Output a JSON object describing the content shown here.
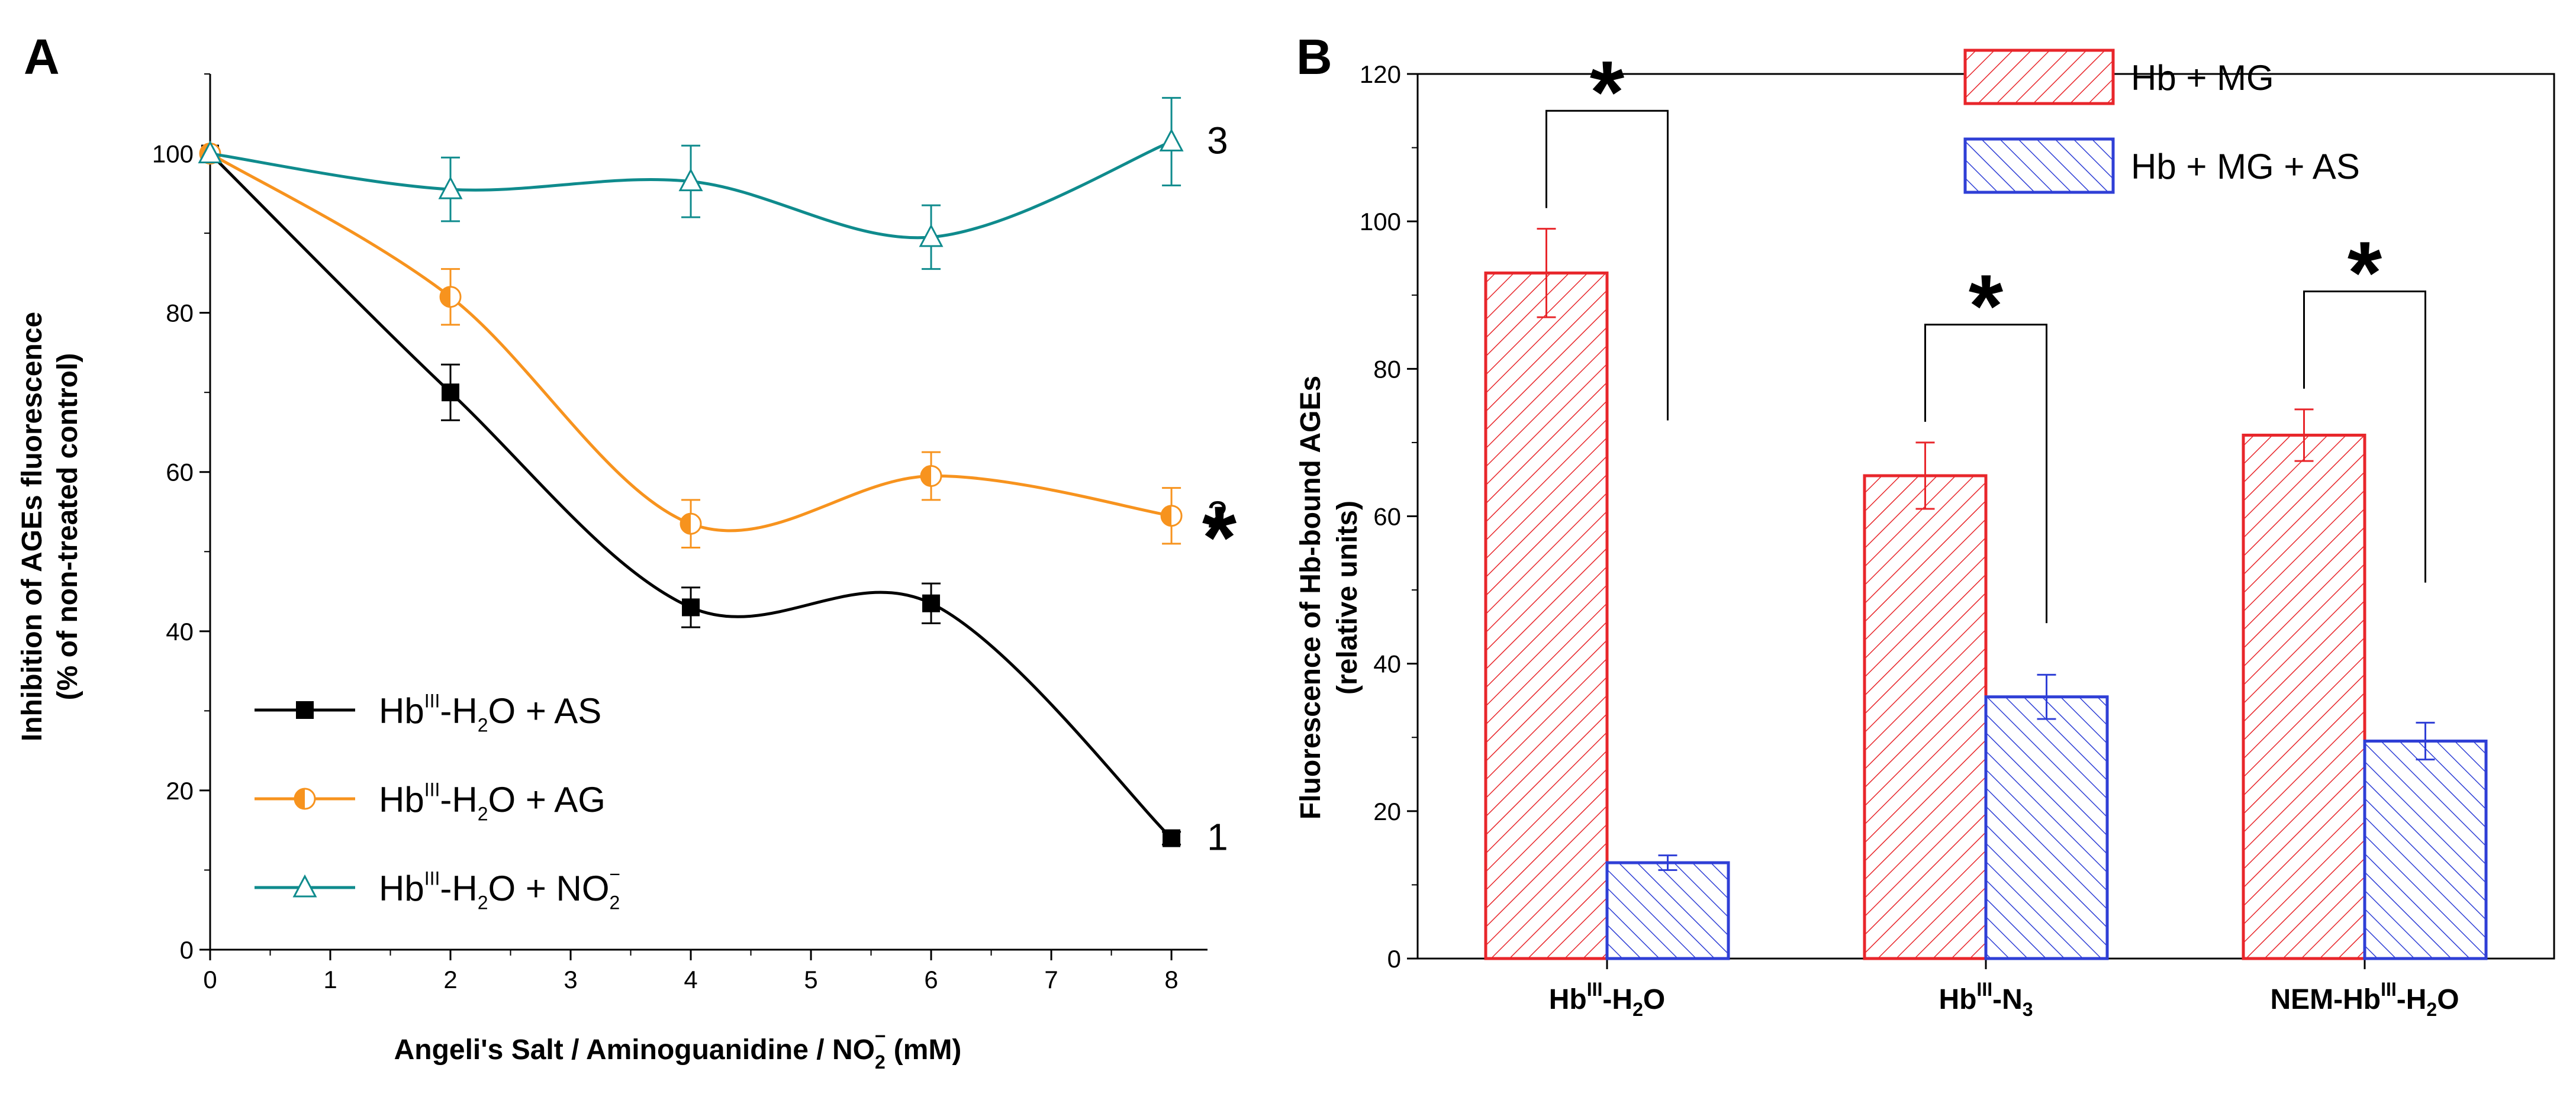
{
  "chart_data": [
    {
      "panel": "A",
      "type": "line",
      "ylabel_lines": [
        "Inhibition of AGEs fluorescence",
        "(% of non-treated control)"
      ],
      "xlabel": {
        "pre": "Angeli's Salt / Aminoguanidine / NO",
        "sub": "2",
        "sup": "−",
        "post": " (mM)"
      },
      "xlim": [
        0,
        8.3
      ],
      "ylim": [
        0,
        110
      ],
      "x_ticks": [
        "0",
        "1",
        "2",
        "3",
        "4",
        "5",
        "6",
        "7",
        "8"
      ],
      "y_ticks": [
        "0",
        "20",
        "40",
        "60",
        "80",
        "100"
      ],
      "series": [
        {
          "label": {
            "pre": "Hb",
            "sup": "III",
            "mid": "-H",
            "sub": "2",
            "post": "O + AS"
          },
          "curve_label": "1",
          "color": "#000000",
          "marker": "square",
          "points": [
            {
              "x": 0,
              "y": 100,
              "err": 0
            },
            {
              "x": 2,
              "y": 70,
              "err": 3.5
            },
            {
              "x": 4,
              "y": 43,
              "err": 2.5
            },
            {
              "x": 6,
              "y": 43.5,
              "err": 2.5
            },
            {
              "x": 8,
              "y": 14,
              "err": 0.8
            }
          ]
        },
        {
          "label": {
            "pre": "Hb",
            "sup": "III",
            "mid": "-H",
            "sub": "2",
            "post": "O + AG"
          },
          "curve_label": "2",
          "color": "#f7931e",
          "marker": "half-circle",
          "points": [
            {
              "x": 0,
              "y": 100,
              "err": 0
            },
            {
              "x": 2,
              "y": 82,
              "err": 3.5
            },
            {
              "x": 4,
              "y": 53.5,
              "err": 3
            },
            {
              "x": 6,
              "y": 59.5,
              "err": 3
            },
            {
              "x": 8,
              "y": 54.5,
              "err": 3.5
            }
          ]
        },
        {
          "label": {
            "pre": "Hb",
            "sup": "III",
            "mid": "-H",
            "sub": "2",
            "post": "O + NO",
            "sub2": "2",
            "sup2": "−"
          },
          "curve_label": "3",
          "color": "#0f8b8d",
          "marker": "open-triangle",
          "points": [
            {
              "x": 0,
              "y": 100,
              "err": 0
            },
            {
              "x": 2,
              "y": 95.5,
              "err": 4
            },
            {
              "x": 4,
              "y": 96.5,
              "err": 4.5
            },
            {
              "x": 6,
              "y": 89.5,
              "err": 4
            },
            {
              "x": 8,
              "y": 101.5,
              "err": 5.5
            }
          ]
        }
      ],
      "annotation": "*"
    },
    {
      "panel": "B",
      "type": "bar",
      "ylabel_lines": [
        "Fluorescence of Hb-bound AGEs",
        "(relative units)"
      ],
      "ylim": [
        0,
        120
      ],
      "y_ticks": [
        "0",
        "20",
        "40",
        "60",
        "80",
        "100",
        "120"
      ],
      "categories": [
        {
          "pre": "Hb",
          "sup": "III",
          "mid": "-H",
          "sub": "2",
          "post": "O"
        },
        {
          "pre": "Hb",
          "sup": "III",
          "mid": "-N",
          "sub": "3",
          "post": ""
        },
        {
          "pre": "NEM-Hb",
          "sup": "III",
          "mid": "-H",
          "sub": "2",
          "post": "O"
        }
      ],
      "series": [
        {
          "name": "Hb + MG",
          "color": "#e8262b",
          "values": [
            93,
            65.5,
            71
          ],
          "errors": [
            6,
            4.5,
            3.5
          ]
        },
        {
          "name": "Hb + MG + AS",
          "color": "#2f3fd6",
          "values": [
            13,
            35.5,
            29.5
          ],
          "errors": [
            1,
            3,
            2.5
          ]
        }
      ],
      "significance": [
        "*",
        "*",
        "*"
      ]
    }
  ]
}
